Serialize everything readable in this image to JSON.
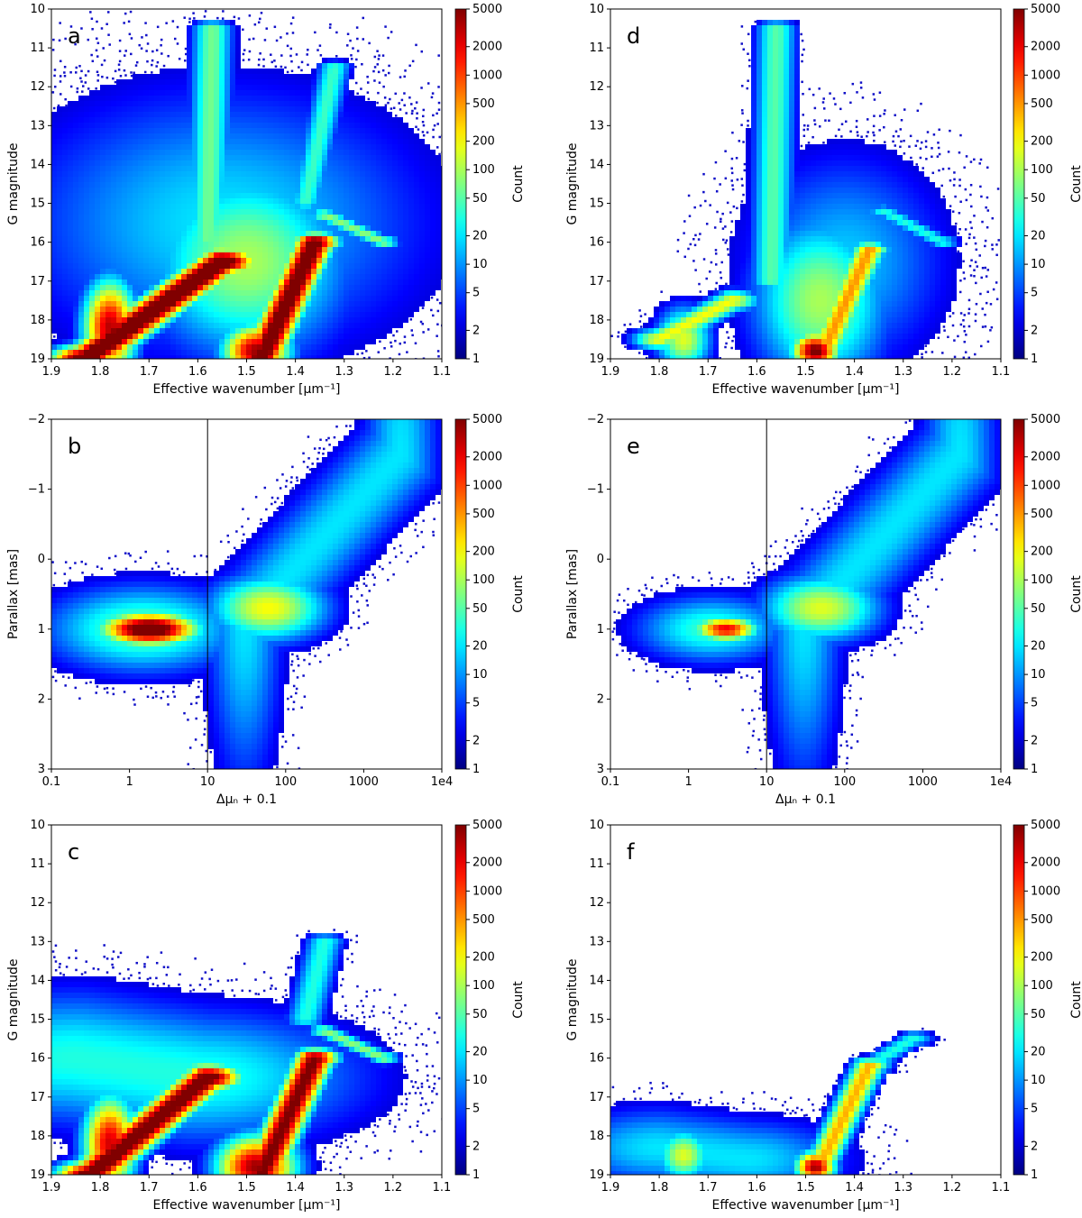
{
  "chart_data": [
    {
      "type": "heatmap",
      "panel_label": "a",
      "xlabel": "Effective wavenumber [μm⁻¹]",
      "ylabel": "G magnitude",
      "xlim": [
        1.9,
        1.1
      ],
      "ylim": [
        19,
        10
      ],
      "x_scale": "linear",
      "x_ticks": [
        "1.9",
        "1.8",
        "1.7",
        "1.6",
        "1.5",
        "1.4",
        "1.3",
        "1.2",
        "1.1"
      ],
      "y_ticks": [
        "10",
        "11",
        "12",
        "13",
        "14",
        "15",
        "16",
        "17",
        "18",
        "19"
      ],
      "colorbar": {
        "label": "Count",
        "scale": "log",
        "ticks": [
          "5000",
          "2000",
          "1000",
          "500",
          "200",
          "100",
          "50",
          "20",
          "10",
          "5",
          "2",
          "1"
        ],
        "colormap": "jet"
      },
      "features": [
        {
          "kind": "diag",
          "x1": 1.83,
          "y1": 19,
          "x2": 1.55,
          "y2": 16.5,
          "w": 0.05,
          "peak": 4.2
        },
        {
          "kind": "diag",
          "x1": 1.47,
          "y1": 19,
          "x2": 1.36,
          "y2": 16.0,
          "w": 0.035,
          "peak": 4.0
        },
        {
          "kind": "blob",
          "x": 1.78,
          "y": 18.2,
          "sx": 0.04,
          "sy": 0.9,
          "peak": 3.5
        },
        {
          "kind": "blob",
          "x": 1.48,
          "y": 18.8,
          "sx": 0.05,
          "sy": 0.5,
          "peak": 3.6
        },
        {
          "kind": "blob",
          "x": 1.5,
          "y": 16.5,
          "sx": 0.15,
          "sy": 1.8,
          "peak": 2.0
        },
        {
          "kind": "diag",
          "x1": 1.58,
          "y1": 16,
          "x2": 1.57,
          "y2": 10.5,
          "w": 0.03,
          "peak": 1.8
        },
        {
          "kind": "diag",
          "x1": 1.38,
          "y1": 15,
          "x2": 1.32,
          "y2": 11.5,
          "w": 0.025,
          "peak": 1.6
        },
        {
          "kind": "diag",
          "x1": 1.34,
          "y1": 15.3,
          "x2": 1.22,
          "y2": 16.0,
          "w": 0.025,
          "peak": 1.9
        },
        {
          "kind": "blob",
          "x": 1.55,
          "y": 15.5,
          "sx": 0.3,
          "sy": 2.5,
          "peak": 1.3
        }
      ]
    },
    {
      "type": "heatmap",
      "panel_label": "b",
      "xlabel": "Δμₙ + 0.1",
      "ylabel": "Parallax [mas]",
      "xlim": [
        0.1,
        10000
      ],
      "ylim": [
        -2,
        3
      ],
      "x_scale": "log",
      "x_ticks": [
        "0.1",
        "1",
        "10",
        "100",
        "1000",
        "1e4"
      ],
      "y_ticks": [
        "−2",
        "−1",
        "0",
        "1",
        "2",
        "3"
      ],
      "vline": 10,
      "colorbar": {
        "label": "Count",
        "scale": "log",
        "ticks": [
          "5000",
          "2000",
          "1000",
          "500",
          "200",
          "100",
          "50",
          "20",
          "10",
          "5",
          "2",
          "1"
        ],
        "colormap": "jet"
      },
      "features": [
        {
          "kind": "blob",
          "x": 1.8,
          "y": 0,
          "sx": 0.45,
          "sy": 0.17,
          "peak": 4.2
        },
        {
          "kind": "blob",
          "x": 1.5,
          "y": 0,
          "sx": 0.9,
          "sy": 0.45,
          "peak": 1.8
        },
        {
          "kind": "blob",
          "x": 60,
          "y": 0.3,
          "sx": 0.55,
          "sy": 0.35,
          "peak": 2.3
        },
        {
          "kind": "diag",
          "x1": 30,
          "y1": 0.1,
          "x2": 3000,
          "y2": 2.5,
          "w": 0.35,
          "peak": 1.3
        }
      ]
    },
    {
      "type": "heatmap",
      "panel_label": "c",
      "xlabel": "Effective wavenumber [μm⁻¹]",
      "ylabel": "G magnitude",
      "xlim": [
        1.9,
        1.1
      ],
      "ylim": [
        19,
        10
      ],
      "x_scale": "linear",
      "x_ticks": [
        "1.9",
        "1.8",
        "1.7",
        "1.6",
        "1.5",
        "1.4",
        "1.3",
        "1.2",
        "1.1"
      ],
      "y_ticks": [
        "10",
        "11",
        "12",
        "13",
        "14",
        "15",
        "16",
        "17",
        "18",
        "19"
      ],
      "colorbar": {
        "label": "Count",
        "scale": "log",
        "ticks": [
          "5000",
          "2000",
          "1000",
          "500",
          "200",
          "100",
          "50",
          "20",
          "10",
          "5",
          "2",
          "1"
        ],
        "colormap": "jet"
      },
      "features": [
        {
          "kind": "diag",
          "x1": 1.82,
          "y1": 19,
          "x2": 1.58,
          "y2": 16.5,
          "w": 0.05,
          "peak": 4.0
        },
        {
          "kind": "diag",
          "x1": 1.47,
          "y1": 19,
          "x2": 1.36,
          "y2": 16.0,
          "w": 0.035,
          "peak": 3.8
        },
        {
          "kind": "blob",
          "x": 1.78,
          "y": 18.2,
          "sx": 0.04,
          "sy": 0.9,
          "peak": 3.4
        },
        {
          "kind": "blob",
          "x": 1.48,
          "y": 18.8,
          "sx": 0.06,
          "sy": 0.6,
          "peak": 3.6
        },
        {
          "kind": "diag",
          "x1": 1.85,
          "y1": 16,
          "x2": 1.6,
          "y2": 16.5,
          "w": 0.25,
          "peak": 1.5
        },
        {
          "kind": "diag",
          "x1": 1.38,
          "y1": 15,
          "x2": 1.34,
          "y2": 13.0,
          "w": 0.03,
          "peak": 1.5
        },
        {
          "kind": "diag",
          "x1": 1.34,
          "y1": 15.3,
          "x2": 1.22,
          "y2": 16.0,
          "w": 0.025,
          "peak": 1.9
        }
      ]
    },
    {
      "type": "heatmap",
      "panel_label": "d",
      "xlabel": "Effective wavenumber [μm⁻¹]",
      "ylabel": "G magnitude",
      "xlim": [
        1.9,
        1.1
      ],
      "ylim": [
        19,
        10
      ],
      "x_scale": "linear",
      "x_ticks": [
        "1.9",
        "1.8",
        "1.7",
        "1.6",
        "1.5",
        "1.4",
        "1.3",
        "1.2",
        "1.1"
      ],
      "y_ticks": [
        "10",
        "11",
        "12",
        "13",
        "14",
        "15",
        "16",
        "17",
        "18",
        "19"
      ],
      "colorbar": {
        "label": "Count",
        "scale": "log",
        "ticks": [
          "5000",
          "2000",
          "1000",
          "500",
          "200",
          "100",
          "50",
          "20",
          "10",
          "5",
          "2",
          "1"
        ],
        "colormap": "jet"
      },
      "features": [
        {
          "kind": "diag",
          "x1": 1.8,
          "y1": 18.5,
          "x2": 1.65,
          "y2": 17.5,
          "w": 0.04,
          "peak": 2.3
        },
        {
          "kind": "blob",
          "x": 1.75,
          "y": 18.5,
          "sx": 0.04,
          "sy": 0.6,
          "peak": 2.2
        },
        {
          "kind": "diag",
          "x1": 1.47,
          "y1": 19,
          "x2": 1.37,
          "y2": 16.2,
          "w": 0.03,
          "peak": 2.7
        },
        {
          "kind": "blob",
          "x": 1.48,
          "y": 18.8,
          "sx": 0.035,
          "sy": 0.35,
          "peak": 3.8
        },
        {
          "kind": "blob",
          "x": 1.47,
          "y": 17.5,
          "sx": 0.1,
          "sy": 1.6,
          "peak": 2.0
        },
        {
          "kind": "diag",
          "x1": 1.57,
          "y1": 17,
          "x2": 1.56,
          "y2": 10.5,
          "w": 0.03,
          "peak": 1.7
        },
        {
          "kind": "diag",
          "x1": 1.34,
          "y1": 15.2,
          "x2": 1.22,
          "y2": 16.0,
          "w": 0.025,
          "peak": 1.5
        },
        {
          "kind": "blob",
          "x": 1.42,
          "y": 16.5,
          "sx": 0.15,
          "sy": 2.0,
          "peak": 1.2
        }
      ]
    },
    {
      "type": "heatmap",
      "panel_label": "e",
      "xlabel": "Δμₙ + 0.1",
      "ylabel": "Parallax [mas]",
      "xlim": [
        0.1,
        10000
      ],
      "ylim": [
        -2,
        3
      ],
      "x_scale": "log",
      "x_ticks": [
        "0.1",
        "1",
        "10",
        "100",
        "1000",
        "1e4"
      ],
      "y_ticks": [
        "−2",
        "−1",
        "0",
        "1",
        "2",
        "3"
      ],
      "vline": 10,
      "colorbar": {
        "label": "Count",
        "scale": "log",
        "ticks": [
          "5000",
          "2000",
          "1000",
          "500",
          "200",
          "100",
          "50",
          "20",
          "10",
          "5",
          "2",
          "1"
        ],
        "colormap": "jet"
      },
      "features": [
        {
          "kind": "blob",
          "x": 3,
          "y": 0,
          "sx": 0.3,
          "sy": 0.13,
          "peak": 3.3
        },
        {
          "kind": "blob",
          "x": 2,
          "y": 0,
          "sx": 0.7,
          "sy": 0.35,
          "peak": 1.6
        },
        {
          "kind": "blob",
          "x": 50,
          "y": 0.3,
          "sx": 0.55,
          "sy": 0.35,
          "peak": 2.2
        },
        {
          "kind": "diag",
          "x1": 30,
          "y1": 0.1,
          "x2": 3000,
          "y2": 2.5,
          "w": 0.35,
          "peak": 1.3
        }
      ]
    },
    {
      "type": "heatmap",
      "panel_label": "f",
      "xlabel": "Effective wavenumber [μm⁻¹]",
      "ylabel": "G magnitude",
      "xlim": [
        1.9,
        1.1
      ],
      "ylim": [
        19,
        10
      ],
      "x_scale": "linear",
      "x_ticks": [
        "1.9",
        "1.8",
        "1.7",
        "1.6",
        "1.5",
        "1.4",
        "1.3",
        "1.2",
        "1.1"
      ],
      "y_ticks": [
        "10",
        "11",
        "12",
        "13",
        "14",
        "15",
        "16",
        "17",
        "18",
        "19"
      ],
      "colorbar": {
        "label": "Count",
        "scale": "log",
        "ticks": [
          "5000",
          "2000",
          "1000",
          "500",
          "200",
          "100",
          "50",
          "20",
          "10",
          "5",
          "2",
          "1"
        ],
        "colormap": "jet"
      },
      "features": [
        {
          "kind": "blob",
          "x": 1.75,
          "y": 18.5,
          "sx": 0.04,
          "sy": 0.5,
          "peak": 2.2
        },
        {
          "kind": "diag",
          "x1": 1.8,
          "y1": 18.3,
          "x2": 1.62,
          "y2": 18.6,
          "w": 0.15,
          "peak": 1.3
        },
        {
          "kind": "diag",
          "x1": 1.48,
          "y1": 19,
          "x2": 1.37,
          "y2": 16.2,
          "w": 0.03,
          "peak": 2.6
        },
        {
          "kind": "blob",
          "x": 1.48,
          "y": 18.8,
          "sx": 0.03,
          "sy": 0.3,
          "peak": 3.6
        },
        {
          "kind": "diag",
          "x1": 1.37,
          "y1": 16.2,
          "x2": 1.28,
          "y2": 15.5,
          "w": 0.03,
          "peak": 1.5
        }
      ]
    }
  ]
}
